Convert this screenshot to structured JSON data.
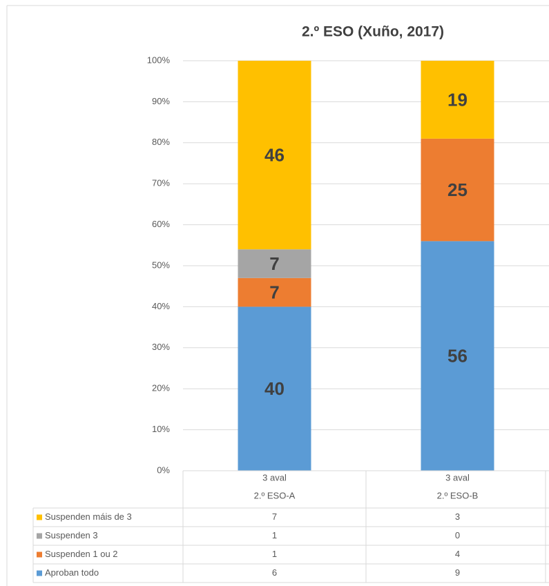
{
  "chart_data": {
    "type": "bar",
    "stacked": true,
    "title": "2.º ESO (Xuño, 2017)",
    "category_groups": [
      "3 aval",
      "3 aval"
    ],
    "categories": [
      "2.º ESO-A",
      "2.º ESO-B"
    ],
    "series": [
      {
        "name": "Aproban todo",
        "color": "#5b9bd5",
        "values": [
          40,
          56
        ],
        "counts": [
          6,
          9
        ]
      },
      {
        "name": "Suspenden 1 ou 2",
        "color": "#ed7d31",
        "values": [
          7,
          25
        ],
        "counts": [
          1,
          4
        ]
      },
      {
        "name": "Suspenden 3",
        "color": "#a5a5a5",
        "values": [
          7,
          0
        ],
        "counts": [
          1,
          0
        ]
      },
      {
        "name": "Suspenden máis de 3",
        "color": "#ffc000",
        "values": [
          46,
          19
        ],
        "counts": [
          7,
          3
        ]
      }
    ],
    "ylim": [
      0,
      100
    ],
    "yticks": [
      {
        "value": 0,
        "label": "0%"
      },
      {
        "value": 10,
        "label": "10%"
      },
      {
        "value": 20,
        "label": "20%"
      },
      {
        "value": 30,
        "label": "30%"
      },
      {
        "value": 40,
        "label": "40%"
      },
      {
        "value": 50,
        "label": "50%"
      },
      {
        "value": 60,
        "label": "60%"
      },
      {
        "value": 70,
        "label": "70%"
      },
      {
        "value": 80,
        "label": "80%"
      },
      {
        "value": 90,
        "label": "90%"
      },
      {
        "value": 100,
        "label": "100%"
      }
    ],
    "grid": true
  }
}
